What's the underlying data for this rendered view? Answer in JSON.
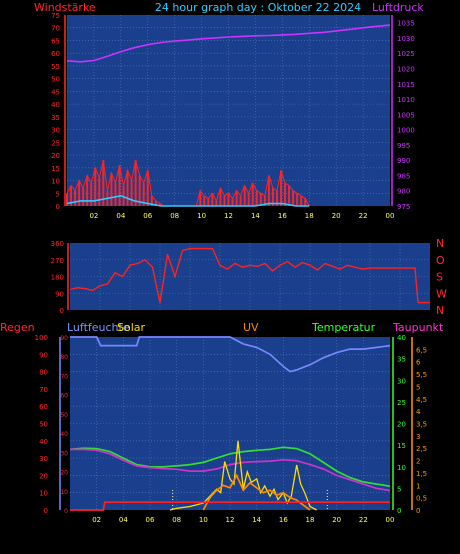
{
  "header": {
    "left_label": "Windstärke",
    "title": "24 hour graph day : Oktober 22 2024",
    "right_label": "Luftdruck"
  },
  "colors": {
    "background": "#000000",
    "plot_bg": "#1a3f8c",
    "grid": "#5a74b8",
    "axis_red": "#ff2a2a",
    "axis_magenta": "#cc33ff",
    "axis_green": "#33ff33",
    "axis_orange": "#ff9900",
    "x_ticks": "#ffff66"
  },
  "chart_data": [
    {
      "type": "line",
      "title": "",
      "x_ticks": [
        "02",
        "04",
        "06",
        "08",
        "10",
        "12",
        "14",
        "16",
        "18",
        "20",
        "22",
        "00"
      ],
      "xlim": [
        0,
        24
      ],
      "left_axis": {
        "label": "Windstärke",
        "ticks": [
          "0",
          "5",
          "10",
          "15",
          "20",
          "25",
          "30",
          "35",
          "40",
          "45",
          "50",
          "55",
          "60",
          "65",
          "70",
          "75"
        ],
        "ylim": [
          0,
          75
        ]
      },
      "right_axis": {
        "label": "Luftdruck",
        "ticks": [
          "975",
          "980",
          "985",
          "990",
          "995",
          "1000",
          "1005",
          "1010",
          "1015",
          "1020",
          "1025",
          "1030",
          "1035"
        ],
        "ylim": [
          975,
          1037.5
        ]
      },
      "series": [
        {
          "name": "",
          "axis": "right",
          "color": "#cc33ff",
          "style": "line",
          "x": [
            0,
            1,
            2,
            3,
            4,
            5,
            6,
            7,
            8,
            9,
            10,
            11,
            12,
            13,
            14,
            15,
            16,
            17,
            18,
            19,
            20,
            21,
            22,
            23,
            24
          ],
          "y": [
            1022.5,
            1022.2,
            1022.6,
            1024,
            1025.5,
            1026.8,
            1027.8,
            1028.5,
            1029,
            1029.3,
            1029.7,
            1030,
            1030.3,
            1030.5,
            1030.7,
            1030.8,
            1031,
            1031.2,
            1031.5,
            1031.8,
            1032.3,
            1032.8,
            1033.3,
            1033.8,
            1034.2
          ]
        },
        {
          "name": "",
          "axis": "left",
          "color": "#ff2222",
          "style": "spikes",
          "x": [
            0,
            0.3,
            0.6,
            0.9,
            1.2,
            1.5,
            1.8,
            2.1,
            2.4,
            2.7,
            3,
            3.3,
            3.6,
            3.9,
            4.2,
            4.5,
            4.8,
            5.1,
            5.4,
            5.7,
            6,
            6.3,
            6.6,
            6.9,
            7.2,
            7.5,
            7.8,
            8.1,
            8.4,
            8.7,
            9,
            9.3,
            9.6,
            9.9,
            10.2,
            10.5,
            10.8,
            11.1,
            11.4,
            11.7,
            12,
            12.3,
            12.6,
            12.9,
            13.2,
            13.5,
            13.8,
            14.1,
            14.4,
            14.7,
            15,
            15.3,
            15.6,
            15.9,
            16.2,
            16.5,
            16.8,
            17.1,
            17.4,
            17.7,
            18
          ],
          "y": [
            5,
            8,
            6,
            10,
            7,
            12,
            9,
            15,
            11,
            18,
            6,
            13,
            9,
            16,
            8,
            14,
            10,
            18,
            12,
            9,
            14,
            4,
            2,
            1,
            0,
            0,
            0,
            0,
            0,
            0,
            0,
            0,
            0,
            6,
            4,
            3,
            5,
            2,
            7,
            4,
            5,
            3,
            6,
            4,
            8,
            5,
            9,
            6,
            5,
            4,
            12,
            7,
            6,
            14,
            9,
            8,
            6,
            5,
            4,
            3,
            0
          ]
        },
        {
          "name": "",
          "axis": "left",
          "color": "#33ccff",
          "style": "line",
          "x": [
            0,
            1,
            2,
            3,
            4,
            5,
            6,
            7,
            8,
            9,
            10,
            11,
            12,
            13,
            14,
            15,
            16,
            17,
            18
          ],
          "y": [
            1,
            2,
            2,
            3,
            4,
            2,
            1,
            0,
            0,
            0,
            0,
            0,
            0,
            0,
            0,
            1,
            1,
            0,
            0
          ]
        }
      ]
    },
    {
      "type": "scatter",
      "title": "",
      "x_ticks": [],
      "xlim": [
        0,
        24
      ],
      "left_axis": {
        "label": "",
        "ticks": [
          "0",
          "90",
          "180",
          "270",
          "360"
        ],
        "ylim": [
          0,
          360
        ]
      },
      "right_axis": {
        "label": "",
        "ticks": [
          "N",
          "W",
          "S",
          "O",
          "N"
        ]
      },
      "series": [
        {
          "name": "",
          "color": "#ff2222",
          "style": "line",
          "x": [
            0,
            0.5,
            1,
            1.5,
            2,
            2.5,
            3,
            3.5,
            4,
            4.5,
            5,
            5.5,
            6,
            6.5,
            7,
            7.5,
            8,
            8.5,
            9,
            9.5,
            10,
            10.5,
            11,
            11.5,
            12,
            12.5,
            13,
            13.5,
            14,
            14.5,
            15,
            15.5,
            16,
            16.5,
            17,
            17.5,
            18,
            18.5,
            19,
            19.5,
            20,
            21,
            22,
            23,
            23.2,
            23.5,
            24
          ],
          "y": [
            110,
            120,
            115,
            105,
            130,
            140,
            200,
            180,
            240,
            250,
            270,
            230,
            40,
            300,
            180,
            320,
            330,
            330,
            330,
            330,
            240,
            220,
            250,
            230,
            240,
            235,
            250,
            210,
            240,
            260,
            230,
            255,
            240,
            215,
            250,
            235,
            220,
            240,
            230,
            220,
            225,
            225,
            225,
            225,
            40,
            40,
            40
          ]
        }
      ]
    },
    {
      "type": "line",
      "title": "",
      "labels": {
        "regen": "Regen",
        "luftfeuchte": "Luftfeuchte",
        "solar": "Solar",
        "uv": "UV",
        "temperatur": "Temperatur",
        "taupunkt": "Taupunkt"
      },
      "x_ticks": [
        "02",
        "04",
        "06",
        "08",
        "10",
        "12",
        "14",
        "16",
        "18",
        "20",
        "22",
        "00"
      ],
      "xlim": [
        0,
        24
      ],
      "left_axis_1": {
        "ticks": [
          "0",
          "10",
          "20",
          "30",
          "40",
          "50",
          "60",
          "70",
          "80",
          "90",
          "100"
        ],
        "ylim": [
          0,
          100
        ]
      },
      "left_axis_2": {
        "ticks": [
          "0",
          "10",
          "20",
          "30",
          "40",
          "50",
          "60",
          "70",
          "80",
          "90"
        ],
        "ylim": [
          0,
          90
        ]
      },
      "right_axis_1": {
        "ticks": [
          "0",
          "5",
          "10",
          "15",
          "20",
          "25",
          "30",
          "35",
          "40"
        ],
        "ylim": [
          0,
          40
        ]
      },
      "right_axis_2": {
        "ticks": [
          "0",
          "0,5",
          "1",
          "1,5",
          "2",
          "2,5",
          "3",
          "3,5",
          "4",
          "4,5",
          "5",
          "5,5",
          "6",
          "6,5"
        ],
        "ylim": [
          0,
          7
        ]
      },
      "series": [
        {
          "name": "Luftfeuchte",
          "color": "#7788ff",
          "style": "line",
          "x": [
            0,
            2,
            2.3,
            5,
            5.2,
            6,
            8,
            10,
            11,
            12,
            13,
            14,
            15,
            16,
            16.5,
            17,
            18,
            19,
            20,
            21,
            22,
            23,
            24
          ],
          "y": [
            100,
            100,
            95,
            95,
            100,
            100,
            100,
            100,
            100,
            100,
            96,
            94,
            90,
            83,
            80,
            81,
            84,
            88,
            91,
            93,
            93,
            94,
            95
          ]
        },
        {
          "name": "Temperatur",
          "color": "#33dd33",
          "style": "line",
          "x": [
            0,
            1,
            2,
            3,
            4,
            5,
            6,
            7,
            8,
            9,
            10,
            11,
            12,
            13,
            14,
            15,
            16,
            17,
            18,
            19,
            20,
            21,
            22,
            23,
            24
          ],
          "y": [
            14,
            14.3,
            14.2,
            13.5,
            12,
            10.5,
            10,
            10,
            10.2,
            10.5,
            11,
            12,
            13,
            13.5,
            13.8,
            14,
            14.5,
            14.2,
            13,
            11,
            9,
            7.5,
            6.5,
            6,
            5.5
          ]
        },
        {
          "name": "Taupunkt",
          "color": "#cc33cc",
          "style": "line",
          "x": [
            0,
            1,
            2,
            3,
            4,
            5,
            6,
            7,
            8,
            9,
            10,
            11,
            12,
            13,
            14,
            15,
            16,
            17,
            18,
            19,
            20,
            21,
            22,
            23,
            24
          ],
          "y": [
            14,
            14,
            13.8,
            13,
            11.5,
            10.2,
            9.8,
            9.6,
            9.4,
            9,
            9,
            9.5,
            10.5,
            11,
            11.2,
            11.3,
            11.6,
            11.4,
            10.5,
            9.5,
            8,
            7,
            6,
            5,
            4.5
          ]
        },
        {
          "name": "Solar",
          "color": "#ffdd00",
          "style": "line",
          "x": [
            7.5,
            8,
            9,
            10,
            10.5,
            11,
            11.3,
            11.6,
            12,
            12.3,
            12.6,
            13,
            13.3,
            13.6,
            14,
            14.3,
            14.6,
            15,
            15.3,
            15.6,
            16,
            16.3,
            16.6,
            17,
            17.3,
            17.6,
            18,
            18.5
          ],
          "y": [
            0,
            1,
            2,
            4,
            8,
            12,
            10,
            28,
            18,
            15,
            40,
            12,
            22,
            16,
            18,
            10,
            14,
            8,
            12,
            6,
            10,
            4,
            8,
            26,
            15,
            10,
            2,
            0
          ]
        },
        {
          "name": "UV",
          "color": "#ff8800",
          "style": "line",
          "x": [
            10,
            10.5,
            11,
            11.5,
            12,
            12.5,
            13,
            13.5,
            14,
            14.5,
            15,
            15.5,
            16,
            16.5,
            17,
            17.5,
            18
          ],
          "y": [
            0,
            0.5,
            0.8,
            1,
            0.9,
            1.4,
            0.8,
            1.1,
            0.9,
            0.7,
            0.8,
            0.6,
            0.7,
            0.5,
            0.4,
            0.2,
            0
          ]
        },
        {
          "name": "Regen",
          "color": "#ff2222",
          "style": "line",
          "x": [
            0,
            2.5,
            2.6,
            24
          ],
          "y": [
            0,
            0,
            4.5,
            4.5
          ]
        }
      ]
    }
  ]
}
